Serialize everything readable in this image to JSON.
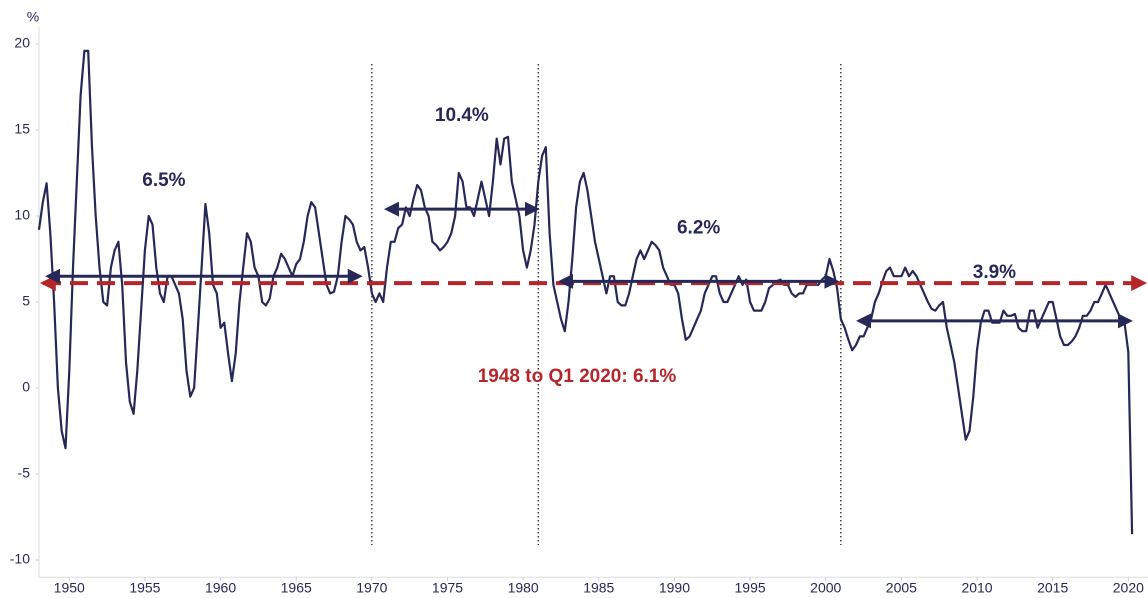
{
  "chart_data": {
    "type": "line",
    "y_axis_label": "%",
    "x": [
      1948,
      1948.25,
      1948.5,
      1948.75,
      1949,
      1949.25,
      1949.5,
      1949.75,
      1950,
      1950.25,
      1950.5,
      1950.75,
      1951,
      1951.25,
      1951.5,
      1951.75,
      1952,
      1952.25,
      1952.5,
      1952.75,
      1953,
      1953.25,
      1953.5,
      1953.75,
      1954,
      1954.25,
      1954.5,
      1954.75,
      1955,
      1955.25,
      1955.5,
      1955.75,
      1956,
      1956.25,
      1956.5,
      1956.75,
      1957,
      1957.25,
      1957.5,
      1957.75,
      1958,
      1958.25,
      1958.5,
      1958.75,
      1959,
      1959.25,
      1959.5,
      1959.75,
      1960,
      1960.25,
      1960.5,
      1960.75,
      1961,
      1961.25,
      1961.5,
      1961.75,
      1962,
      1962.25,
      1962.5,
      1962.75,
      1963,
      1963.25,
      1963.5,
      1963.75,
      1964,
      1964.25,
      1964.5,
      1964.75,
      1965,
      1965.25,
      1965.5,
      1965.75,
      1966,
      1966.25,
      1966.5,
      1966.75,
      1967,
      1967.25,
      1967.5,
      1967.75,
      1968,
      1968.25,
      1968.5,
      1968.75,
      1969,
      1969.25,
      1969.5,
      1969.75,
      1970,
      1970.25,
      1970.5,
      1970.75,
      1971,
      1971.25,
      1971.5,
      1971.75,
      1972,
      1972.25,
      1972.5,
      1972.75,
      1973,
      1973.25,
      1973.5,
      1973.75,
      1974,
      1974.25,
      1974.5,
      1974.75,
      1975,
      1975.25,
      1975.5,
      1975.75,
      1976,
      1976.25,
      1976.5,
      1976.75,
      1977,
      1977.25,
      1977.5,
      1977.75,
      1978,
      1978.25,
      1978.5,
      1978.75,
      1979,
      1979.25,
      1979.5,
      1979.75,
      1980,
      1980.25,
      1980.5,
      1980.75,
      1981,
      1981.25,
      1981.5,
      1981.75,
      1982,
      1982.25,
      1982.5,
      1982.75,
      1983,
      1983.25,
      1983.5,
      1983.75,
      1984,
      1984.25,
      1984.5,
      1984.75,
      1985,
      1985.25,
      1985.5,
      1985.75,
      1986,
      1986.25,
      1986.5,
      1986.75,
      1987,
      1987.25,
      1987.5,
      1987.75,
      1988,
      1988.25,
      1988.5,
      1988.75,
      1989,
      1989.25,
      1989.5,
      1989.75,
      1990,
      1990.25,
      1990.5,
      1990.75,
      1991,
      1991.25,
      1991.5,
      1991.75,
      1992,
      1992.25,
      1992.5,
      1992.75,
      1993,
      1993.25,
      1993.5,
      1993.75,
      1994,
      1994.25,
      1994.5,
      1994.75,
      1995,
      1995.25,
      1995.5,
      1995.75,
      1996,
      1996.25,
      1996.5,
      1996.75,
      1997,
      1997.25,
      1997.5,
      1997.75,
      1998,
      1998.25,
      1998.5,
      1998.75,
      1999,
      1999.25,
      1999.5,
      1999.75,
      2000,
      2000.25,
      2000.5,
      2000.75,
      2001,
      2001.25,
      2001.5,
      2001.75,
      2002,
      2002.25,
      2002.5,
      2002.75,
      2003,
      2003.25,
      2003.5,
      2003.75,
      2004,
      2004.25,
      2004.5,
      2004.75,
      2005,
      2005.25,
      2005.5,
      2005.75,
      2006,
      2006.25,
      2006.5,
      2006.75,
      2007,
      2007.25,
      2007.5,
      2007.75,
      2008,
      2008.25,
      2008.5,
      2008.75,
      2009,
      2009.25,
      2009.5,
      2009.75,
      2010,
      2010.25,
      2010.5,
      2010.75,
      2011,
      2011.25,
      2011.5,
      2011.75,
      2012,
      2012.25,
      2012.5,
      2012.75,
      2013,
      2013.25,
      2013.5,
      2013.75,
      2014,
      2014.25,
      2014.5,
      2014.75,
      2015,
      2015.25,
      2015.5,
      2015.75,
      2016,
      2016.25,
      2016.5,
      2016.75,
      2017,
      2017.25,
      2017.5,
      2017.75,
      2018,
      2018.25,
      2018.5,
      2018.75,
      2019,
      2019.25,
      2019.5,
      2019.75,
      2020,
      2020.25
    ],
    "series": [
      {
        "color": "#262858",
        "values": [
          9.2,
          10.8,
          11.9,
          9,
          5,
          0,
          -2.5,
          -3.5,
          1,
          7,
          12,
          17,
          19.6,
          19.6,
          14,
          10,
          7,
          5,
          4.8,
          7,
          8,
          8.5,
          6,
          1.5,
          -0.8,
          -1.5,
          1,
          4.5,
          8,
          10,
          9.5,
          7,
          5.5,
          5,
          6.5,
          6.5,
          6,
          5.5,
          4,
          1,
          -0.5,
          0,
          3.5,
          7,
          10.7,
          9,
          6,
          5.5,
          3.5,
          3.8,
          2,
          0.4,
          2,
          5,
          7,
          9,
          8.5,
          7,
          6.5,
          5,
          4.8,
          5.2,
          6.5,
          7,
          7.8,
          7.5,
          7,
          6.5,
          7.2,
          7.5,
          8.5,
          10,
          10.8,
          10.5,
          9,
          7.5,
          6,
          5.5,
          5.6,
          6.5,
          8.5,
          10,
          9.8,
          9.5,
          8.5,
          8,
          8.2,
          7,
          5.5,
          5,
          5.5,
          5,
          7,
          8.5,
          8.5,
          9.3,
          9.5,
          10.5,
          10,
          11,
          11.8,
          11.5,
          10.5,
          10,
          8.5,
          8.3,
          8,
          8.2,
          8.5,
          9,
          10,
          12.5,
          12,
          10.5,
          10.5,
          10,
          11,
          12,
          11,
          10,
          12,
          14.5,
          13,
          14.5,
          14.6,
          12,
          11,
          10,
          8,
          7,
          8,
          9.5,
          12,
          13.5,
          14,
          9,
          6,
          5,
          4,
          3.3,
          5,
          7.5,
          10.5,
          12,
          12.5,
          11.5,
          10,
          8.5,
          7.5,
          6.5,
          5.5,
          6.5,
          6.5,
          5,
          4.8,
          4.8,
          5.5,
          6.5,
          7.5,
          8,
          7.5,
          8,
          8.5,
          8.3,
          8,
          7,
          6.5,
          6,
          6,
          5.5,
          4,
          2.8,
          3,
          3.5,
          4,
          4.5,
          5.5,
          6,
          6.5,
          6.5,
          5.5,
          5,
          5,
          5.5,
          6,
          6.5,
          6,
          6.3,
          5,
          4.5,
          4.5,
          4.5,
          5,
          5.8,
          6,
          6.2,
          6.3,
          6,
          6,
          5.5,
          5.3,
          5.5,
          5.5,
          6,
          6,
          6,
          6,
          6.3,
          6.5,
          7.5,
          6.8,
          5.8,
          4,
          3.5,
          2.8,
          2.2,
          2.5,
          3,
          3,
          3.5,
          4,
          5,
          5.5,
          6.2,
          6.8,
          7,
          6.5,
          6.5,
          6.5,
          7,
          6.5,
          6.8,
          6.5,
          6,
          5.5,
          5,
          4.6,
          4.5,
          4.8,
          5,
          3.5,
          2.5,
          1.5,
          0,
          -1.5,
          -3,
          -2.5,
          -0.5,
          2.2,
          3.8,
          4.5,
          4.5,
          3.8,
          3.8,
          3.8,
          4.5,
          4.2,
          4.2,
          4.3,
          3.5,
          3.3,
          3.3,
          4.5,
          4.5,
          3.5,
          4,
          4.5,
          5,
          5,
          4,
          3,
          2.5,
          2.5,
          2.7,
          3,
          3.5,
          4.2,
          4.2,
          4.5,
          5,
          5,
          5.5,
          6,
          5.5,
          5,
          4.5,
          4,
          3.8,
          2.1,
          -8.5
        ]
      }
    ],
    "xlim": [
      1948,
      2021.3
    ],
    "ylim": [
      -11,
      21
    ],
    "xticks": [
      1950,
      1955,
      1960,
      1965,
      1970,
      1975,
      1980,
      1985,
      1990,
      1995,
      2000,
      2005,
      2010,
      2015,
      2020
    ],
    "yticks": [
      -10,
      -5,
      0,
      5,
      10,
      15,
      20
    ],
    "dividers": [
      1970,
      1981,
      2001
    ],
    "periods": [
      {
        "start": 1948.6,
        "end": 1969.2,
        "value": 6.5,
        "label": "6.5%"
      },
      {
        "start": 1971,
        "end": 1980.9,
        "value": 10.4,
        "label": "10.4%"
      },
      {
        "start": 1982.5,
        "end": 2000.7,
        "value": 6.2,
        "label": "6.2%"
      },
      {
        "start": 2002.2,
        "end": 2020.1,
        "value": 3.9,
        "label": "3.9%"
      }
    ],
    "average": {
      "value": 6.1,
      "label": "1948 to Q1 2020: 6.1%",
      "color": "#b5262b"
    }
  }
}
